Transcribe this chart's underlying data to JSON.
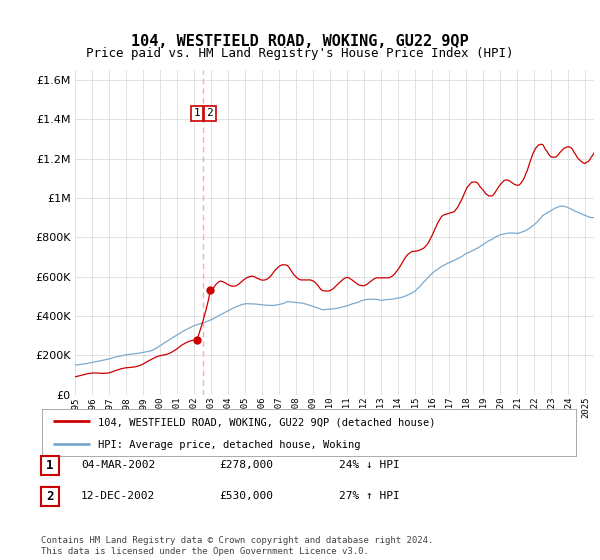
{
  "title": "104, WESTFIELD ROAD, WOKING, GU22 9QP",
  "subtitle": "Price paid vs. HM Land Registry's House Price Index (HPI)",
  "title_fontsize": 11,
  "subtitle_fontsize": 9,
  "legend_label_red": "104, WESTFIELD ROAD, WOKING, GU22 9QP (detached house)",
  "legend_label_blue": "HPI: Average price, detached house, Woking",
  "footnote": "Contains HM Land Registry data © Crown copyright and database right 2024.\nThis data is licensed under the Open Government Licence v3.0.",
  "table_rows": [
    {
      "num": "1",
      "date": "04-MAR-2002",
      "price": "£278,000",
      "hpi": "24% ↓ HPI"
    },
    {
      "num": "2",
      "date": "12-DEC-2002",
      "price": "£530,000",
      "hpi": "27% ↑ HPI"
    }
  ],
  "marker1_x": 2002.17,
  "marker1_y": 278000,
  "marker2_x": 2002.92,
  "marker2_y": 530000,
  "vline_x": 2002.5,
  "ylim": [
    0,
    1650000
  ],
  "xlim_start": 1995.0,
  "xlim_end": 2025.5,
  "red_color": "#cc0000",
  "blue_color": "#7aaad0",
  "vline_color": "#ffaaaa",
  "grid_color": "#dddddd",
  "bg_color": "#ffffff"
}
